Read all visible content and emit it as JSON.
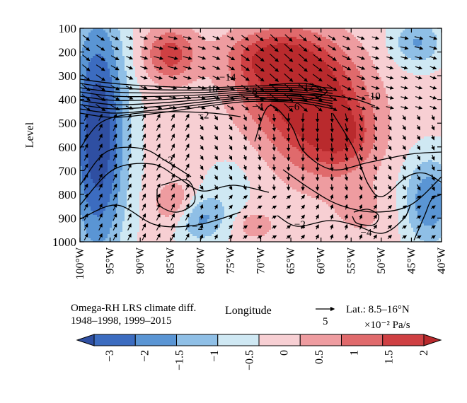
{
  "chart_data": {
    "type": "heatmap",
    "subtype": "filled-contour with contour lines and wind vectors",
    "title": "",
    "xlabel": "Longitude",
    "ylabel": "Level",
    "x_ticks": [
      "100°W",
      "95°W",
      "90°W",
      "85°W",
      "80°W",
      "75°W",
      "70°W",
      "65°W",
      "60°W",
      "55°W",
      "50°W",
      "45°W",
      "40°W"
    ],
    "x_values": [
      -100,
      -95,
      -90,
      -85,
      -80,
      -75,
      -70,
      -65,
      -60,
      -55,
      -50,
      -45,
      -40
    ],
    "y_ticks": [
      "100",
      "200",
      "300",
      "400",
      "500",
      "600",
      "700",
      "800",
      "900",
      "1000"
    ],
    "y_values": [
      100,
      200,
      300,
      400,
      500,
      600,
      700,
      800,
      900,
      1000
    ],
    "xlim": [
      -100,
      -40
    ],
    "ylim": [
      1000,
      100
    ],
    "y_inverted": true,
    "colorbar": {
      "levels": [
        -3,
        -2,
        -1.5,
        -1,
        -0.5,
        0,
        0.5,
        1,
        1.5,
        2
      ],
      "tick_labels": [
        "-3",
        "-2",
        "-1.5",
        "-1",
        "-0.5",
        "0",
        "0.5",
        "1",
        "1.5",
        "2"
      ],
      "colors": [
        "#2f4fa2",
        "#3c6cc0",
        "#5a95d4",
        "#8fbfe6",
        "#cfe8f3",
        "#f7cfd3",
        "#ee9ca0",
        "#e06a6c",
        "#cf4043",
        "#b92a2d"
      ],
      "extend": "both"
    },
    "field_blobs": [
      {
        "x": -97,
        "y": 550,
        "sx": 3.2,
        "sy": 360,
        "amp": -2.6
      },
      {
        "x": -85,
        "y": 210,
        "sx": 3.0,
        "sy": 80,
        "amp": 1.6
      },
      {
        "x": -69,
        "y": 215,
        "sx": 5.0,
        "sy": 70,
        "amp": 0.9
      },
      {
        "x": -65,
        "y": 310,
        "sx": 6.5,
        "sy": 140,
        "amp": 1.9
      },
      {
        "x": -60,
        "y": 500,
        "sx": 6.0,
        "sy": 170,
        "amp": 1.7
      },
      {
        "x": -56,
        "y": 560,
        "sx": 3.5,
        "sy": 90,
        "amp": 0.8
      },
      {
        "x": -84,
        "y": 850,
        "sx": 2.5,
        "sy": 70,
        "amp": 1.1
      },
      {
        "x": -80.5,
        "y": 900,
        "sx": 3.2,
        "sy": 70,
        "amp": -1.4
      },
      {
        "x": -75,
        "y": 760,
        "sx": 3.0,
        "sy": 90,
        "amp": -0.4
      },
      {
        "x": -42,
        "y": 830,
        "sx": 3.0,
        "sy": 130,
        "amp": -1.6
      },
      {
        "x": -44,
        "y": 160,
        "sx": 3.0,
        "sy": 70,
        "amp": -1.2
      },
      {
        "x": -71,
        "y": 930,
        "sx": 2.0,
        "sy": 40,
        "amp": 0.8
      },
      {
        "x": -53,
        "y": 880,
        "sx": 4.0,
        "sy": 90,
        "amp": 0.4
      }
    ],
    "contour_labels": [
      {
        "text": "-14",
        "x": -75.5,
        "y": 305
      },
      {
        "text": "-10",
        "x": -78.5,
        "y": 355
      },
      {
        "text": "-8",
        "x": -71.5,
        "y": 365
      },
      {
        "text": "-12",
        "x": -62.5,
        "y": 345
      },
      {
        "text": "-10",
        "x": -51.5,
        "y": 385
      },
      {
        "text": "-4",
        "x": -70.5,
        "y": 430
      },
      {
        "text": "-6",
        "x": -64.5,
        "y": 430
      },
      {
        "text": "-2",
        "x": -79.5,
        "y": 465
      },
      {
        "text": "-2",
        "x": -85.5,
        "y": 655
      },
      {
        "text": "-2",
        "x": -80.5,
        "y": 935
      },
      {
        "text": "-2",
        "x": -63.5,
        "y": 925
      },
      {
        "text": "-4",
        "x": -52.5,
        "y": 960
      }
    ],
    "vector_reference": {
      "label": "5",
      "units": "×10⁻² Pa/s"
    },
    "wind_field": "dense reversed-pressure arrow field, mostly southeastward in upper levels and northeastward in the lower-left"
  },
  "footer": {
    "caption_line1": "Omega-RH LRS climate diff.",
    "caption_line2": "1948–1998, 1999–2015",
    "longitude_label": "Longitude",
    "reference_number": "5",
    "latitude_label": "Lat.: 8.5–16°N",
    "units_label": "×10⁻² Pa/s"
  }
}
